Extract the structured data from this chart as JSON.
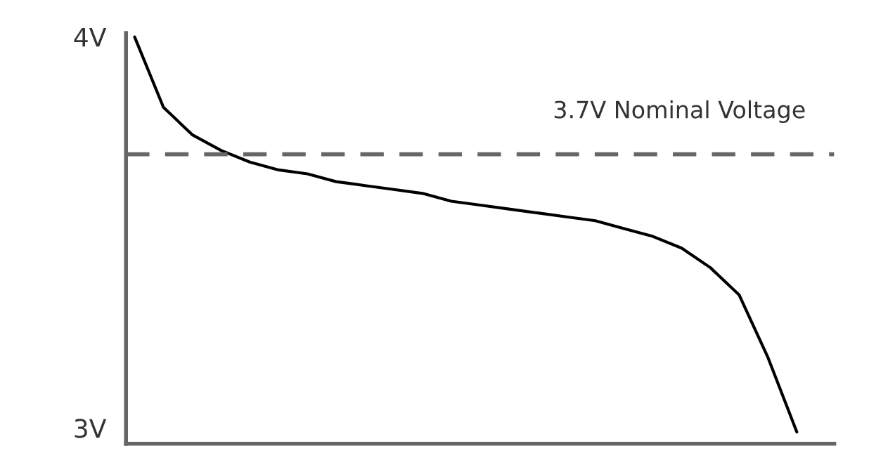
{
  "chart_data": {
    "type": "line",
    "relative": false,
    "categories": [
      null,
      null,
      null,
      null,
      null,
      null,
      null,
      null,
      null,
      null,
      null,
      null,
      null,
      null,
      null,
      null,
      null,
      null,
      null,
      null,
      null,
      null,
      null,
      null
    ],
    "series": [
      {
        "color": "#000000",
        "values": [
          4.0,
          3.82,
          3.75,
          3.71,
          3.68,
          3.66,
          3.65,
          3.63,
          3.62,
          3.61,
          3.6,
          3.58,
          3.57,
          3.56,
          3.55,
          3.54,
          3.53,
          3.51,
          3.49,
          3.46,
          3.41,
          3.34,
          3.18,
          2.99
        ]
      }
    ],
    "ylim": [
      2.96,
      4.01
    ],
    "yticks": [
      {
        "value": 4,
        "label": "4V"
      },
      {
        "value": 3,
        "label": "3V"
      }
    ],
    "tick_labels": "y",
    "grid": false,
    "legend": false,
    "marker": "none",
    "line_style": "solid",
    "ref_lines": [
      {
        "axis": "y",
        "value": 3.7,
        "label": "3.7V Nominal Voltage",
        "color": "#666666",
        "line_style": "dashed"
      }
    ]
  }
}
